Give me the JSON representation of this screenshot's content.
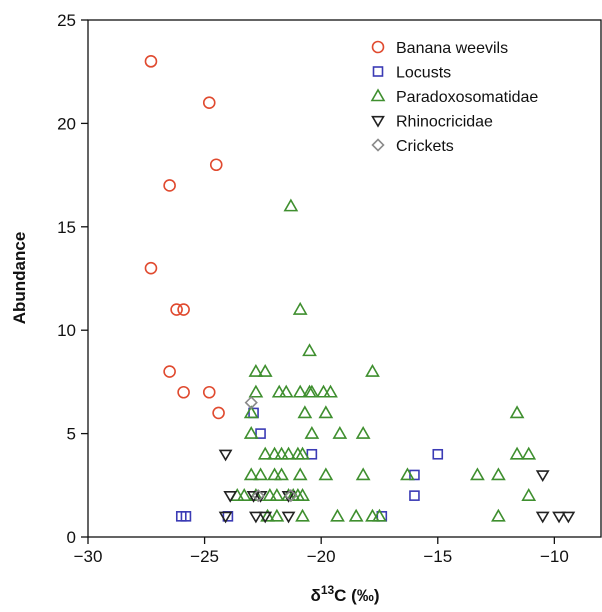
{
  "chart_data": {
    "type": "scatter",
    "xlabel_main": "δ",
    "xlabel_sup": "13",
    "xlabel_rest": "C (‰)",
    "ylabel": "Abundance",
    "xlim": [
      -30,
      -8
    ],
    "ylim": [
      0,
      25
    ],
    "x_ticks": [
      -30,
      -25,
      -20,
      -15,
      -10
    ],
    "x_tick_labels": [
      "−30",
      "−25",
      "−20",
      "−15",
      "−10"
    ],
    "y_ticks": [
      0,
      5,
      10,
      15,
      20,
      25
    ],
    "y_tick_labels": [
      "0",
      "5",
      "10",
      "15",
      "20",
      "25"
    ],
    "grid": false,
    "legend_position": "top-right",
    "series": [
      {
        "name": "Banana weevils",
        "marker": "circle",
        "color": "#e04a2f",
        "points": [
          [
            -27.3,
            23
          ],
          [
            -24.8,
            21
          ],
          [
            -24.5,
            18
          ],
          [
            -26.5,
            17
          ],
          [
            -27.3,
            13
          ],
          [
            -26.2,
            11
          ],
          [
            -25.9,
            11
          ],
          [
            -26.5,
            8
          ],
          [
            -25.9,
            7
          ],
          [
            -24.8,
            7
          ],
          [
            -24.4,
            6
          ]
        ]
      },
      {
        "name": "Locusts",
        "marker": "square",
        "color": "#3b3bb5",
        "points": [
          [
            -26.0,
            1
          ],
          [
            -25.8,
            1
          ],
          [
            -24.0,
            1
          ],
          [
            -22.9,
            6
          ],
          [
            -22.6,
            5
          ],
          [
            -20.4,
            4
          ],
          [
            -17.4,
            1
          ],
          [
            -16.0,
            3
          ],
          [
            -16.0,
            2
          ],
          [
            -15.0,
            4
          ]
        ]
      },
      {
        "name": "Paradoxosomatidae",
        "marker": "triangle-up",
        "color": "#3f8f2f",
        "points": [
          [
            -21.3,
            16
          ],
          [
            -20.9,
            11
          ],
          [
            -20.5,
            9
          ],
          [
            -22.8,
            8
          ],
          [
            -22.4,
            8
          ],
          [
            -17.8,
            8
          ],
          [
            -22.8,
            7
          ],
          [
            -21.8,
            7
          ],
          [
            -21.5,
            7
          ],
          [
            -20.9,
            7
          ],
          [
            -20.5,
            7
          ],
          [
            -20.4,
            7
          ],
          [
            -19.9,
            7
          ],
          [
            -19.6,
            7
          ],
          [
            -23.0,
            6
          ],
          [
            -20.7,
            6
          ],
          [
            -19.8,
            6
          ],
          [
            -11.6,
            6
          ],
          [
            -23.0,
            5
          ],
          [
            -20.4,
            5
          ],
          [
            -19.2,
            5
          ],
          [
            -18.2,
            5
          ],
          [
            -22.4,
            4
          ],
          [
            -22.0,
            4
          ],
          [
            -21.7,
            4
          ],
          [
            -21.4,
            4
          ],
          [
            -21.0,
            4
          ],
          [
            -20.8,
            4
          ],
          [
            -11.6,
            4
          ],
          [
            -11.1,
            4
          ],
          [
            -23.0,
            3
          ],
          [
            -22.6,
            3
          ],
          [
            -22.0,
            3
          ],
          [
            -21.7,
            3
          ],
          [
            -20.9,
            3
          ],
          [
            -19.8,
            3
          ],
          [
            -18.2,
            3
          ],
          [
            -16.3,
            3
          ],
          [
            -13.3,
            3
          ],
          [
            -12.4,
            3
          ],
          [
            -23.6,
            2
          ],
          [
            -23.3,
            2
          ],
          [
            -22.8,
            2
          ],
          [
            -22.2,
            2
          ],
          [
            -21.9,
            2
          ],
          [
            -21.4,
            2
          ],
          [
            -21.2,
            2
          ],
          [
            -21.0,
            2
          ],
          [
            -20.8,
            2
          ],
          [
            -11.1,
            2
          ],
          [
            -22.3,
            1
          ],
          [
            -21.9,
            1
          ],
          [
            -20.8,
            1
          ],
          [
            -19.3,
            1
          ],
          [
            -18.5,
            1
          ],
          [
            -17.8,
            1
          ],
          [
            -17.5,
            1
          ],
          [
            -12.4,
            1
          ]
        ]
      },
      {
        "name": "Rhinocricidae",
        "marker": "triangle-down",
        "color": "#222222",
        "points": [
          [
            -24.1,
            4
          ],
          [
            -23.9,
            2
          ],
          [
            -22.9,
            2
          ],
          [
            -22.6,
            2
          ],
          [
            -21.4,
            2
          ],
          [
            -10.5,
            3
          ],
          [
            -24.1,
            1
          ],
          [
            -22.8,
            1
          ],
          [
            -22.4,
            1
          ],
          [
            -21.4,
            1
          ],
          [
            -10.5,
            1
          ],
          [
            -9.8,
            1
          ],
          [
            -9.4,
            1
          ]
        ]
      },
      {
        "name": "Crickets",
        "marker": "diamond",
        "color": "#8a8a8a",
        "points": [
          [
            -23.0,
            6.5
          ],
          [
            -22.7,
            2
          ],
          [
            -21.3,
            2
          ]
        ]
      }
    ]
  }
}
